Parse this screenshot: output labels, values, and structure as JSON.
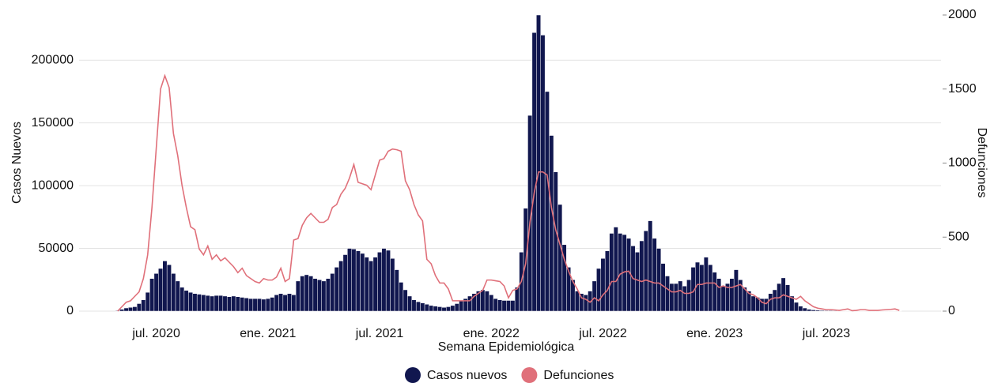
{
  "chart_data": {
    "type": "bar-line",
    "x_label": "Semana Epidemiológica",
    "y_label": "Casos Nuevos",
    "y2_label": "Defunciones",
    "categories": [
      null,
      null,
      null,
      null,
      null,
      null,
      null,
      null,
      null,
      "jul. 2020",
      null,
      null,
      null,
      null,
      null,
      null,
      null,
      null,
      null,
      null,
      null,
      null,
      null,
      null,
      null,
      null,
      null,
      null,
      null,
      null,
      null,
      null,
      null,
      null,
      null,
      "ene. 2021",
      null,
      null,
      null,
      null,
      null,
      null,
      null,
      null,
      null,
      null,
      null,
      null,
      null,
      null,
      null,
      null,
      null,
      null,
      null,
      null,
      null,
      null,
      null,
      null,
      null,
      "jul. 2021",
      null,
      null,
      null,
      null,
      null,
      null,
      null,
      null,
      null,
      null,
      null,
      null,
      null,
      null,
      null,
      null,
      null,
      null,
      null,
      null,
      null,
      null,
      null,
      null,
      null,
      "ene. 2022",
      null,
      null,
      null,
      null,
      null,
      null,
      null,
      null,
      null,
      null,
      null,
      null,
      null,
      null,
      null,
      null,
      null,
      null,
      null,
      null,
      null,
      null,
      null,
      null,
      null,
      "jul. 2022",
      null,
      null,
      null,
      null,
      null,
      null,
      null,
      null,
      null,
      null,
      null,
      null,
      null,
      null,
      null,
      null,
      null,
      null,
      null,
      null,
      null,
      null,
      null,
      null,
      null,
      "ene. 2023",
      null,
      null,
      null,
      null,
      null,
      null,
      null,
      null,
      null,
      null,
      null,
      null,
      null,
      null,
      null,
      null,
      null,
      null,
      null,
      null,
      null,
      null,
      null,
      null,
      null,
      "jul. 2023",
      null,
      null,
      null,
      null,
      null,
      null,
      null,
      null,
      null,
      null,
      null,
      null,
      null,
      null,
      null,
      null,
      null
    ],
    "series": [
      {
        "name": "Casos nuevos",
        "type": "bar",
        "color": "#11174f",
        "values": [
          500,
          1500,
          2500,
          3000,
          3500,
          6000,
          9000,
          15000,
          26000,
          30000,
          34000,
          40000,
          37000,
          30000,
          24000,
          19000,
          16500,
          15000,
          14000,
          13500,
          13000,
          12500,
          12000,
          12500,
          12500,
          12000,
          11500,
          12000,
          11500,
          11000,
          10500,
          10000,
          10000,
          10000,
          9500,
          10000,
          11000,
          13000,
          14000,
          13000,
          14000,
          13000,
          24000,
          28000,
          29000,
          28000,
          26000,
          25000,
          24000,
          26000,
          30000,
          35000,
          40000,
          45000,
          50000,
          49500,
          48000,
          46000,
          43000,
          40000,
          43000,
          47000,
          50000,
          48500,
          42000,
          33000,
          23000,
          17000,
          12000,
          9000,
          7500,
          6500,
          5500,
          4500,
          4000,
          3500,
          3000,
          3500,
          4500,
          6000,
          8000,
          10000,
          12000,
          14000,
          16000,
          17000,
          16000,
          13000,
          10000,
          9000,
          8500,
          8500,
          8500,
          19000,
          47000,
          82000,
          156000,
          222000,
          236000,
          220000,
          175000,
          140000,
          111000,
          85000,
          53000,
          35000,
          25000,
          16000,
          14000,
          13000,
          16000,
          24000,
          34000,
          42000,
          48000,
          62000,
          67000,
          62000,
          61000,
          58000,
          52000,
          47000,
          56000,
          64000,
          72000,
          58000,
          50000,
          38000,
          28000,
          22000,
          22000,
          24000,
          20000,
          25000,
          35000,
          39000,
          37000,
          43000,
          37000,
          31000,
          26000,
          20000,
          22000,
          26000,
          33000,
          25000,
          19000,
          16000,
          12000,
          11000,
          10000,
          10000,
          14000,
          17000,
          22000,
          26500,
          21000,
          12000,
          7000,
          4000,
          2500,
          1500,
          1000,
          800,
          600,
          500,
          500,
          400,
          300,
          300,
          300,
          300,
          300,
          300,
          300,
          300,
          300,
          300,
          300,
          300,
          300,
          300,
          300
        ]
      },
      {
        "name": "Defunciones",
        "type": "line",
        "axis": "y2",
        "color": "#e0707a",
        "values": [
          0,
          30,
          60,
          70,
          100,
          130,
          220,
          380,
          700,
          1100,
          1500,
          1590,
          1510,
          1200,
          1050,
          850,
          700,
          570,
          550,
          420,
          380,
          440,
          350,
          380,
          340,
          360,
          330,
          300,
          260,
          290,
          240,
          220,
          200,
          190,
          220,
          210,
          210,
          230,
          290,
          200,
          220,
          480,
          490,
          580,
          630,
          660,
          630,
          600,
          600,
          620,
          700,
          720,
          790,
          830,
          900,
          990,
          870,
          860,
          850,
          820,
          920,
          1020,
          1030,
          1080,
          1095,
          1090,
          1080,
          880,
          820,
          720,
          650,
          610,
          350,
          320,
          240,
          190,
          190,
          150,
          70,
          70,
          70,
          70,
          70,
          100,
          120,
          140,
          210,
          210,
          205,
          200,
          170,
          90,
          140,
          150,
          200,
          320,
          600,
          800,
          940,
          940,
          920,
          700,
          550,
          450,
          350,
          270,
          200,
          150,
          90,
          80,
          60,
          90,
          70,
          110,
          140,
          200,
          200,
          250,
          265,
          270,
          220,
          210,
          200,
          210,
          200,
          190,
          190,
          170,
          150,
          130,
          130,
          140,
          120,
          120,
          130,
          180,
          180,
          190,
          190,
          190,
          160,
          170,
          160,
          160,
          170,
          180,
          150,
          120,
          110,
          90,
          60,
          50,
          80,
          90,
          90,
          110,
          100,
          90,
          80,
          100,
          70,
          50,
          30,
          20,
          15,
          10,
          10,
          8,
          5,
          10,
          15,
          3,
          5,
          10,
          10,
          5,
          5,
          5,
          8,
          10,
          12,
          15,
          5
        ]
      }
    ],
    "ylim": [
      0,
      236000
    ],
    "yticks": [
      0,
      50000,
      100000,
      150000,
      200000
    ],
    "y2lim": [
      0,
      2000
    ],
    "y2ticks": [
      0,
      500,
      1000,
      1500,
      2000
    ],
    "grid": true,
    "legend": "bottom"
  }
}
